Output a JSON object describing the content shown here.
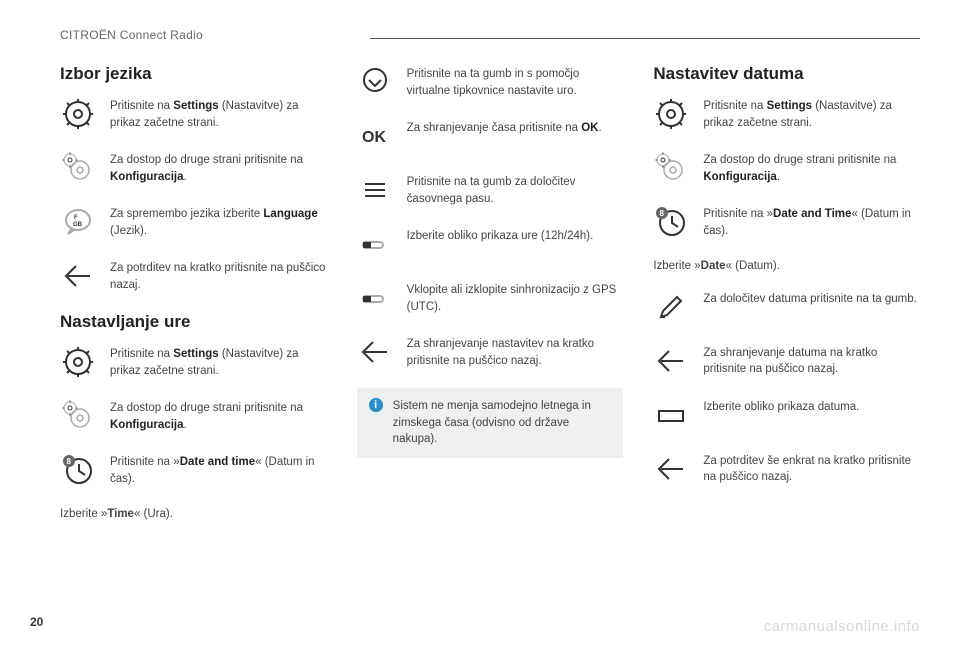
{
  "header": "CITROËN Connect Radio",
  "page_number": "20",
  "watermark": "carmanualsonline.info",
  "col1": {
    "h1": "Izbor jezika",
    "r1": "Pritisnite na <b>Settings</b> (Nastavitve) za prikaz začetne strani.",
    "r2": "Za dostop do druge strani pritisnite na <b>Konfiguracija</b>.",
    "r3": "Za spremembo jezika izberite <b>Language</b> (Jezik).",
    "r4": "Za potrditev na kratko pritisnite na puščico nazaj.",
    "h2": "Nastavljanje ure",
    "r5": "Pritisnite na <b>Settings</b> (Nastavitve) za prikaz začetne strani.",
    "r6": "Za dostop do druge strani pritisnite na <b>Konfiguracija</b>.",
    "r7": "Pritisnite na »<b>Date and time</b>« (Datum in čas).",
    "l1": "Izberite »<b>Time</b>« (Ura)."
  },
  "col2": {
    "r1": "Pritisnite na ta gumb in s pomočjo virtualne tipkovnice nastavite uro.",
    "r2": "Za shranjevanje časa pritisnite na <b>OK</b>.",
    "r3": "Pritisnite na ta gumb za določitev časovnega pasu.",
    "r4": "Izberite obliko prikaza ure (12h/24h).",
    "r5": "Vklopite ali izklopite sinhronizacijo z GPS (UTC).",
    "r6": "Za shranjevanje nastavitev na kratko pritisnite na puščico nazaj.",
    "info": "Sistem ne menja samodejno letnega in zimskega časa (odvisno od države nakupa)."
  },
  "col3": {
    "h1": "Nastavitev datuma",
    "r1": "Pritisnite na <b>Settings</b> (Nastavitve) za prikaz začetne strani.",
    "r2": "Za dostop do druge strani pritisnite na <b>Konfiguracija</b>.",
    "r3": "Pritisnite na »<b>Date and Time</b>« (Datum in čas).",
    "l1": "Izberite »<b>Date</b>« (Datum).",
    "r4": "Za določitev datuma pritisnite na ta gumb.",
    "r5": "Za shranjevanje datuma na kratko pritisnite na puščico nazaj.",
    "r6": "Izberite obliko prikaza datuma.",
    "r7": "Za potrditev še enkrat na kratko pritisnite na puščico nazaj."
  }
}
